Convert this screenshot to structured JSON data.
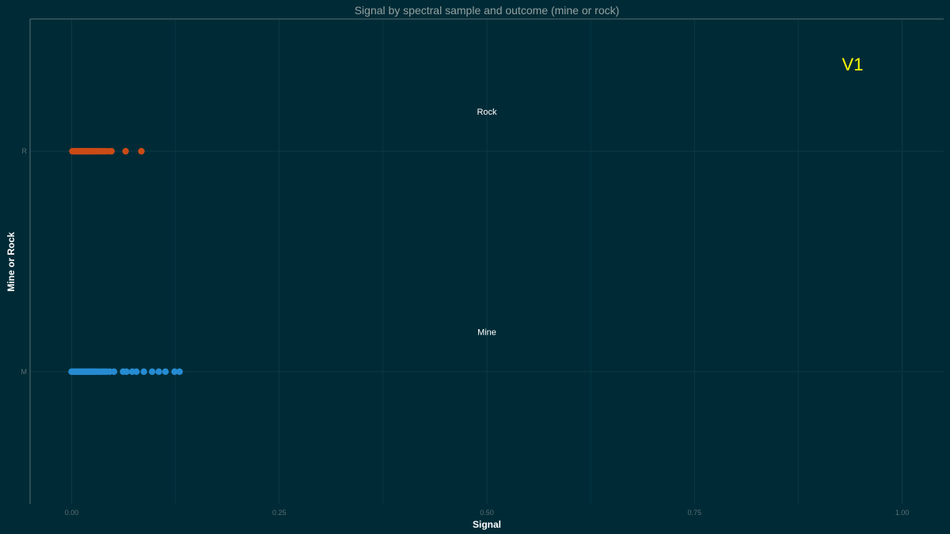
{
  "chart_data": {
    "type": "scatter",
    "title": "Signal by spectral sample and outcome (mine or rock)",
    "xlabel": "Signal",
    "ylabel": "Mine or Rock",
    "xlim": [
      -0.05,
      1.05
    ],
    "x_ticks": [
      "0.00",
      "0.25",
      "0.50",
      "0.75",
      "1.00"
    ],
    "x_tick_values": [
      0,
      0.25,
      0.5,
      0.75,
      1.0
    ],
    "categories": [
      "M",
      "R"
    ],
    "grid": true,
    "series": [
      {
        "category": "R",
        "color": "#cb4b16",
        "x": [
          0.001,
          0.003,
          0.005,
          0.006,
          0.008,
          0.009,
          0.011,
          0.012,
          0.014,
          0.015,
          0.017,
          0.018,
          0.02,
          0.021,
          0.023,
          0.025,
          0.027,
          0.029,
          0.031,
          0.033,
          0.036,
          0.039,
          0.042,
          0.046,
          0.048,
          0.065,
          0.084
        ]
      },
      {
        "category": "M",
        "color": "#268bd2",
        "x": [
          0.0,
          0.002,
          0.004,
          0.006,
          0.008,
          0.01,
          0.012,
          0.014,
          0.016,
          0.018,
          0.02,
          0.022,
          0.024,
          0.026,
          0.028,
          0.03,
          0.033,
          0.036,
          0.039,
          0.042,
          0.046,
          0.051,
          0.062,
          0.066,
          0.073,
          0.078,
          0.087,
          0.097,
          0.105,
          0.113,
          0.124,
          0.13
        ]
      }
    ],
    "annotations": [
      {
        "text": "Rock",
        "x": 0.5,
        "category": "R",
        "offset": 0.18
      },
      {
        "text": "Mine",
        "x": 0.5,
        "category": "M",
        "offset": 0.18
      }
    ],
    "corner_label": "V1"
  }
}
